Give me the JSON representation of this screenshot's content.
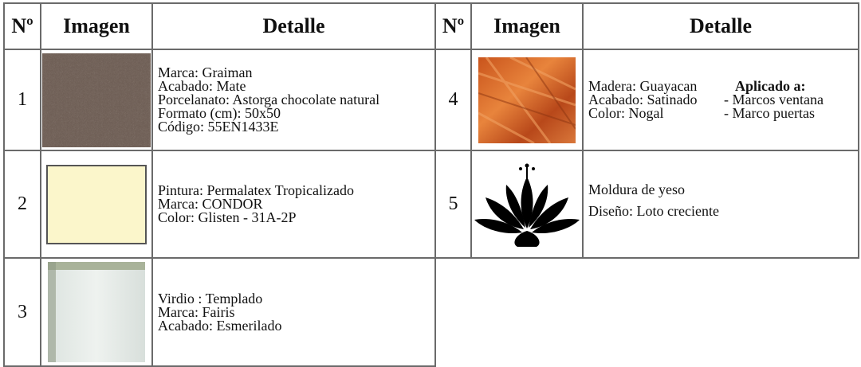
{
  "table": {
    "header": [
      "Nº",
      "Imagen",
      "Detalle",
      "Nº",
      "Imagen",
      "Detalle"
    ],
    "left_items": [
      {
        "number": "1",
        "details": [
          "Marca: Graiman",
          "Acabado: Mate",
          "Porcelanato: Astorga chocolate natural",
          "Formato (cm): 50x50",
          "Código: 55EN1433E"
        ]
      },
      {
        "number": "2",
        "details": [
          "Pintura: Permalatex Tropicalizado",
          "Marca: CONDOR",
          "Color: Glisten - 31A-2P"
        ]
      },
      {
        "number": "3",
        "details": [
          "Virdio : Templado",
          "Marca: Fairis",
          "Acabado: Esmerilado"
        ]
      }
    ],
    "right_items": [
      {
        "number": "4",
        "details": [
          "Madera: Guayacan",
          "Acabado: Satinado",
          "Color: Nogal"
        ],
        "applied_title": "Aplicado a:",
        "applied": [
          "- Marcos ventana",
          "- Marco puertas"
        ]
      },
      {
        "number": "5",
        "details": [
          "Moldura de yeso",
          "Diseño: Loto creciente"
        ]
      }
    ]
  }
}
